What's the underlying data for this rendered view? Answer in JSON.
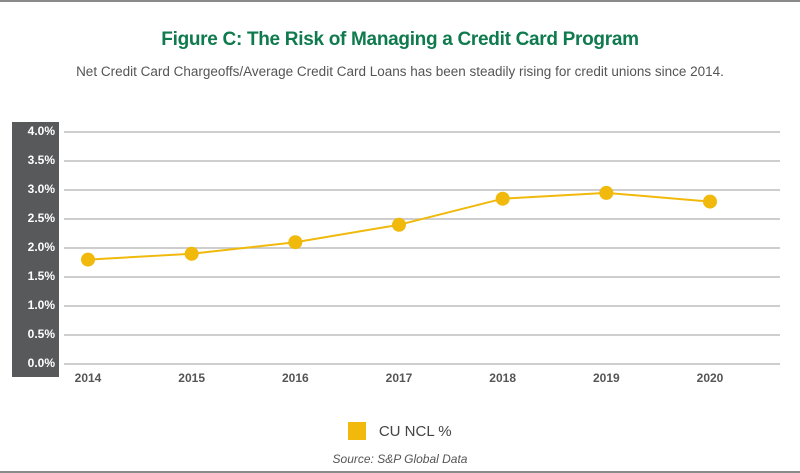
{
  "figure": {
    "title": "Figure C: The Risk of Managing a Credit Card Program",
    "subtitle": "Net Credit Card Chargeoffs/Average Credit Card Loans has been steadily rising for credit unions since 2014.",
    "source": "Source: S&P Global Data"
  },
  "chart_data": {
    "type": "line",
    "title": "Figure C: The Risk of Managing a Credit Card Program",
    "subtitle": "Net Credit Card Chargeoffs/Average Credit Card Loans has been steadily rising for credit unions since 2014.",
    "xlabel": "",
    "ylabel": "",
    "categories": [
      "2014",
      "2015",
      "2016",
      "2017",
      "2018",
      "2019",
      "2020"
    ],
    "series": [
      {
        "name": "CU NCL %",
        "color": "#f0b90b",
        "values": [
          1.8,
          1.9,
          2.1,
          2.4,
          2.85,
          2.95,
          2.8
        ]
      }
    ],
    "ylim": [
      0,
      4.0
    ],
    "yticks": [
      {
        "value": 4.0,
        "label": "4.0%"
      },
      {
        "value": 3.5,
        "label": "3.5%"
      },
      {
        "value": 3.0,
        "label": "3.0%"
      },
      {
        "value": 2.5,
        "label": "2.5%"
      },
      {
        "value": 2.0,
        "label": "2.0%"
      },
      {
        "value": 1.5,
        "label": "1.5%"
      },
      {
        "value": 1.0,
        "label": "1.0%"
      },
      {
        "value": 0.5,
        "label": "0.5%"
      },
      {
        "value": 0.0,
        "label": "0.0%"
      }
    ],
    "grid": true,
    "legend": {
      "position": "bottom-center",
      "entries": [
        "CU NCL %"
      ]
    },
    "source": "Source: S&P Global Data"
  },
  "colors": {
    "title": "#0f7a4e",
    "series": "#f0b90b",
    "axis_box": "#58595b",
    "grid": "#bdbdbd"
  }
}
